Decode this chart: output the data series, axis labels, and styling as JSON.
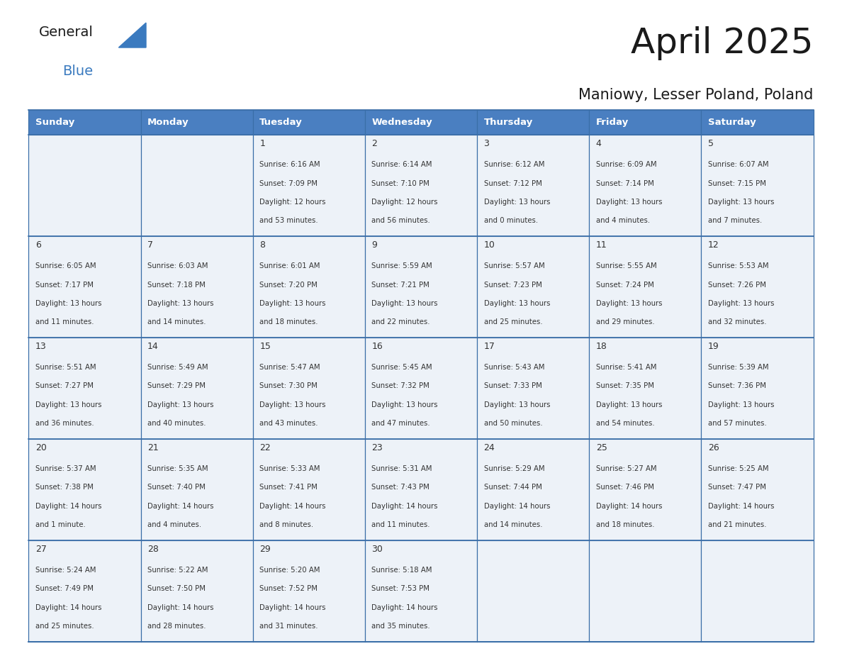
{
  "title": "April 2025",
  "subtitle": "Maniowy, Lesser Poland, Poland",
  "header_bg": "#4a7fc1",
  "header_text_color": "#ffffff",
  "cell_bg_light": "#edf2f8",
  "cell_bg_white": "#ffffff",
  "day_headers": [
    "Sunday",
    "Monday",
    "Tuesday",
    "Wednesday",
    "Thursday",
    "Friday",
    "Saturday"
  ],
  "border_color": "#3a6ea8",
  "inner_border_color": "#4a7fc1",
  "text_color": "#333333",
  "logo_general_color": "#1a1a1a",
  "logo_blue_color": "#3a7abf",
  "logo_triangle_color": "#3a7abf",
  "days": [
    {
      "date": 1,
      "row": 0,
      "col": 2,
      "sunrise": "6:16 AM",
      "sunset": "7:09 PM",
      "daylight_line1": "Daylight: 12 hours",
      "daylight_line2": "and 53 minutes."
    },
    {
      "date": 2,
      "row": 0,
      "col": 3,
      "sunrise": "6:14 AM",
      "sunset": "7:10 PM",
      "daylight_line1": "Daylight: 12 hours",
      "daylight_line2": "and 56 minutes."
    },
    {
      "date": 3,
      "row": 0,
      "col": 4,
      "sunrise": "6:12 AM",
      "sunset": "7:12 PM",
      "daylight_line1": "Daylight: 13 hours",
      "daylight_line2": "and 0 minutes."
    },
    {
      "date": 4,
      "row": 0,
      "col": 5,
      "sunrise": "6:09 AM",
      "sunset": "7:14 PM",
      "daylight_line1": "Daylight: 13 hours",
      "daylight_line2": "and 4 minutes."
    },
    {
      "date": 5,
      "row": 0,
      "col": 6,
      "sunrise": "6:07 AM",
      "sunset": "7:15 PM",
      "daylight_line1": "Daylight: 13 hours",
      "daylight_line2": "and 7 minutes."
    },
    {
      "date": 6,
      "row": 1,
      "col": 0,
      "sunrise": "6:05 AM",
      "sunset": "7:17 PM",
      "daylight_line1": "Daylight: 13 hours",
      "daylight_line2": "and 11 minutes."
    },
    {
      "date": 7,
      "row": 1,
      "col": 1,
      "sunrise": "6:03 AM",
      "sunset": "7:18 PM",
      "daylight_line1": "Daylight: 13 hours",
      "daylight_line2": "and 14 minutes."
    },
    {
      "date": 8,
      "row": 1,
      "col": 2,
      "sunrise": "6:01 AM",
      "sunset": "7:20 PM",
      "daylight_line1": "Daylight: 13 hours",
      "daylight_line2": "and 18 minutes."
    },
    {
      "date": 9,
      "row": 1,
      "col": 3,
      "sunrise": "5:59 AM",
      "sunset": "7:21 PM",
      "daylight_line1": "Daylight: 13 hours",
      "daylight_line2": "and 22 minutes."
    },
    {
      "date": 10,
      "row": 1,
      "col": 4,
      "sunrise": "5:57 AM",
      "sunset": "7:23 PM",
      "daylight_line1": "Daylight: 13 hours",
      "daylight_line2": "and 25 minutes."
    },
    {
      "date": 11,
      "row": 1,
      "col": 5,
      "sunrise": "5:55 AM",
      "sunset": "7:24 PM",
      "daylight_line1": "Daylight: 13 hours",
      "daylight_line2": "and 29 minutes."
    },
    {
      "date": 12,
      "row": 1,
      "col": 6,
      "sunrise": "5:53 AM",
      "sunset": "7:26 PM",
      "daylight_line1": "Daylight: 13 hours",
      "daylight_line2": "and 32 minutes."
    },
    {
      "date": 13,
      "row": 2,
      "col": 0,
      "sunrise": "5:51 AM",
      "sunset": "7:27 PM",
      "daylight_line1": "Daylight: 13 hours",
      "daylight_line2": "and 36 minutes."
    },
    {
      "date": 14,
      "row": 2,
      "col": 1,
      "sunrise": "5:49 AM",
      "sunset": "7:29 PM",
      "daylight_line1": "Daylight: 13 hours",
      "daylight_line2": "and 40 minutes."
    },
    {
      "date": 15,
      "row": 2,
      "col": 2,
      "sunrise": "5:47 AM",
      "sunset": "7:30 PM",
      "daylight_line1": "Daylight: 13 hours",
      "daylight_line2": "and 43 minutes."
    },
    {
      "date": 16,
      "row": 2,
      "col": 3,
      "sunrise": "5:45 AM",
      "sunset": "7:32 PM",
      "daylight_line1": "Daylight: 13 hours",
      "daylight_line2": "and 47 minutes."
    },
    {
      "date": 17,
      "row": 2,
      "col": 4,
      "sunrise": "5:43 AM",
      "sunset": "7:33 PM",
      "daylight_line1": "Daylight: 13 hours",
      "daylight_line2": "and 50 minutes."
    },
    {
      "date": 18,
      "row": 2,
      "col": 5,
      "sunrise": "5:41 AM",
      "sunset": "7:35 PM",
      "daylight_line1": "Daylight: 13 hours",
      "daylight_line2": "and 54 minutes."
    },
    {
      "date": 19,
      "row": 2,
      "col": 6,
      "sunrise": "5:39 AM",
      "sunset": "7:36 PM",
      "daylight_line1": "Daylight: 13 hours",
      "daylight_line2": "and 57 minutes."
    },
    {
      "date": 20,
      "row": 3,
      "col": 0,
      "sunrise": "5:37 AM",
      "sunset": "7:38 PM",
      "daylight_line1": "Daylight: 14 hours",
      "daylight_line2": "and 1 minute."
    },
    {
      "date": 21,
      "row": 3,
      "col": 1,
      "sunrise": "5:35 AM",
      "sunset": "7:40 PM",
      "daylight_line1": "Daylight: 14 hours",
      "daylight_line2": "and 4 minutes."
    },
    {
      "date": 22,
      "row": 3,
      "col": 2,
      "sunrise": "5:33 AM",
      "sunset": "7:41 PM",
      "daylight_line1": "Daylight: 14 hours",
      "daylight_line2": "and 8 minutes."
    },
    {
      "date": 23,
      "row": 3,
      "col": 3,
      "sunrise": "5:31 AM",
      "sunset": "7:43 PM",
      "daylight_line1": "Daylight: 14 hours",
      "daylight_line2": "and 11 minutes."
    },
    {
      "date": 24,
      "row": 3,
      "col": 4,
      "sunrise": "5:29 AM",
      "sunset": "7:44 PM",
      "daylight_line1": "Daylight: 14 hours",
      "daylight_line2": "and 14 minutes."
    },
    {
      "date": 25,
      "row": 3,
      "col": 5,
      "sunrise": "5:27 AM",
      "sunset": "7:46 PM",
      "daylight_line1": "Daylight: 14 hours",
      "daylight_line2": "and 18 minutes."
    },
    {
      "date": 26,
      "row": 3,
      "col": 6,
      "sunrise": "5:25 AM",
      "sunset": "7:47 PM",
      "daylight_line1": "Daylight: 14 hours",
      "daylight_line2": "and 21 minutes."
    },
    {
      "date": 27,
      "row": 4,
      "col": 0,
      "sunrise": "5:24 AM",
      "sunset": "7:49 PM",
      "daylight_line1": "Daylight: 14 hours",
      "daylight_line2": "and 25 minutes."
    },
    {
      "date": 28,
      "row": 4,
      "col": 1,
      "sunrise": "5:22 AM",
      "sunset": "7:50 PM",
      "daylight_line1": "Daylight: 14 hours",
      "daylight_line2": "and 28 minutes."
    },
    {
      "date": 29,
      "row": 4,
      "col": 2,
      "sunrise": "5:20 AM",
      "sunset": "7:52 PM",
      "daylight_line1": "Daylight: 14 hours",
      "daylight_line2": "and 31 minutes."
    },
    {
      "date": 30,
      "row": 4,
      "col": 3,
      "sunrise": "5:18 AM",
      "sunset": "7:53 PM",
      "daylight_line1": "Daylight: 14 hours",
      "daylight_line2": "and 35 minutes."
    }
  ]
}
